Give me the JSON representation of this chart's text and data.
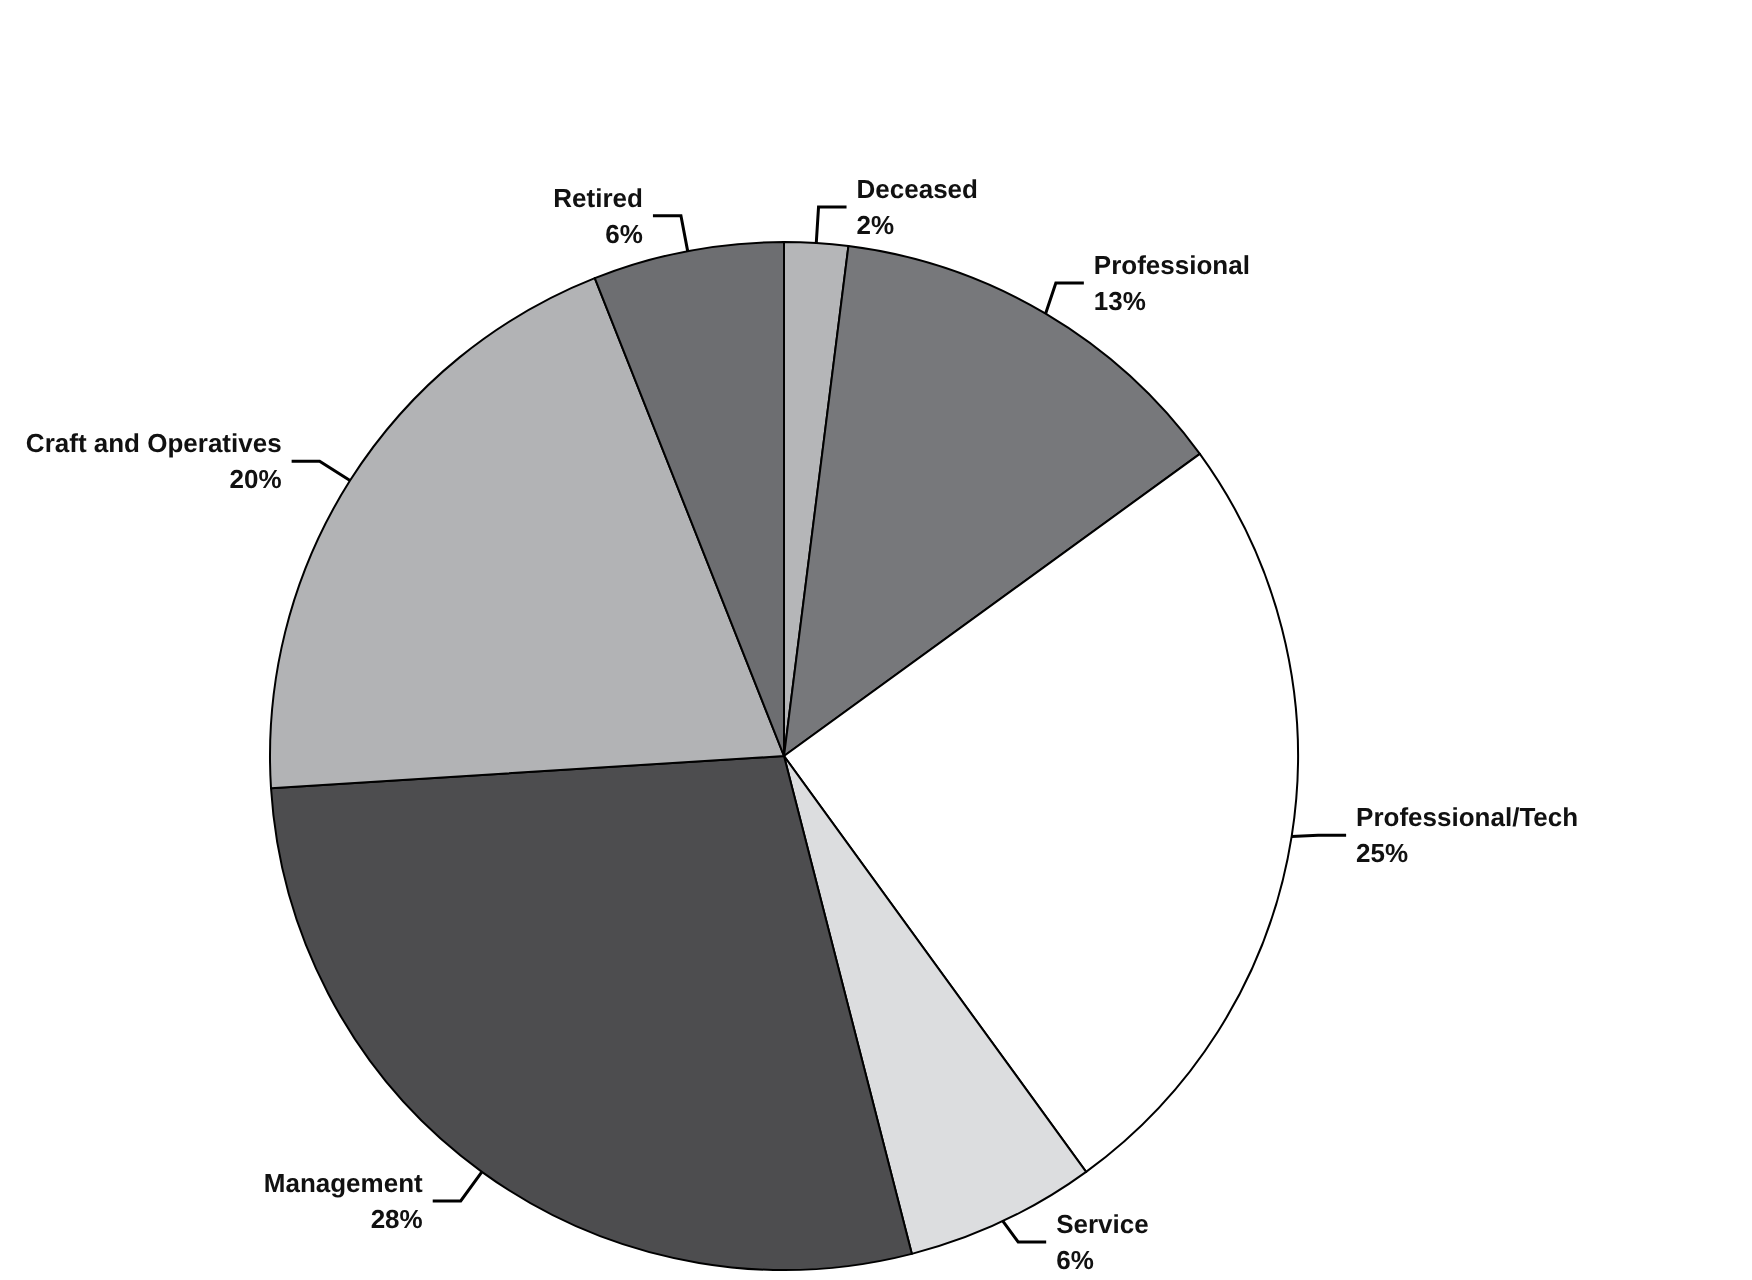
{
  "chart_data": {
    "type": "pie",
    "categories": [
      "Deceased",
      "Professional",
      "Professional/Tech",
      "Service",
      "Management",
      "Craft and Operatives",
      "Retired"
    ],
    "values": [
      2,
      13,
      25,
      6,
      28,
      20,
      6
    ],
    "colors": [
      "#b5b6b8",
      "#77787b",
      "#ffffff",
      "#dcdddf",
      "#4d4d4f",
      "#b2b3b5",
      "#6d6e71"
    ],
    "value_labels": [
      "2%",
      "13%",
      "25%",
      "6%",
      "28%",
      "20%",
      "6%"
    ],
    "legend": false
  }
}
